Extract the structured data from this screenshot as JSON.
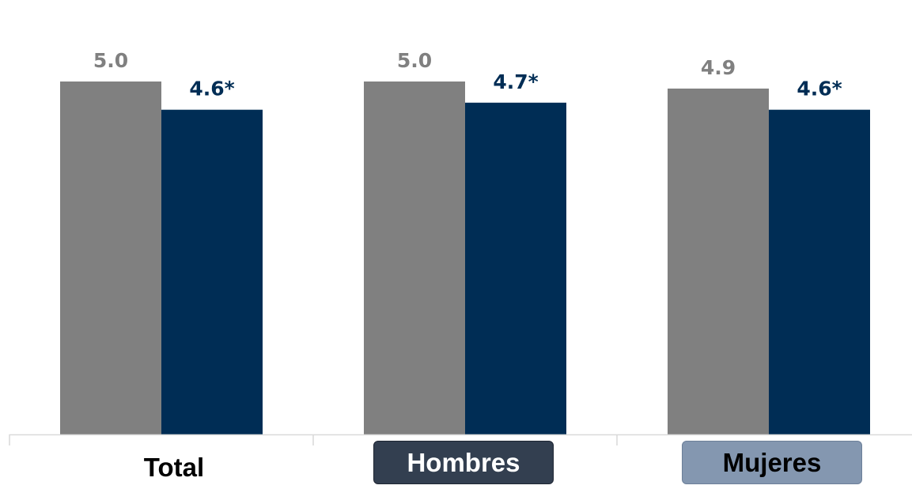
{
  "chart_data": {
    "type": "bar",
    "categories": [
      "Total",
      "Hombres",
      "Mujeres"
    ],
    "series": [
      {
        "values": [
          5.0,
          5.0,
          4.9
        ],
        "labels": [
          "5.0",
          "5.0",
          "4.9"
        ],
        "color": "#808080"
      },
      {
        "values": [
          4.6,
          4.7,
          4.6
        ],
        "labels": [
          "4.6*",
          "4.7*",
          "4.6*"
        ],
        "color": "#002d55"
      }
    ],
    "ylim": [
      0,
      5.0
    ],
    "grid": false,
    "category_label_styles": [
      "plain",
      "dark-box",
      "light-box"
    ]
  }
}
